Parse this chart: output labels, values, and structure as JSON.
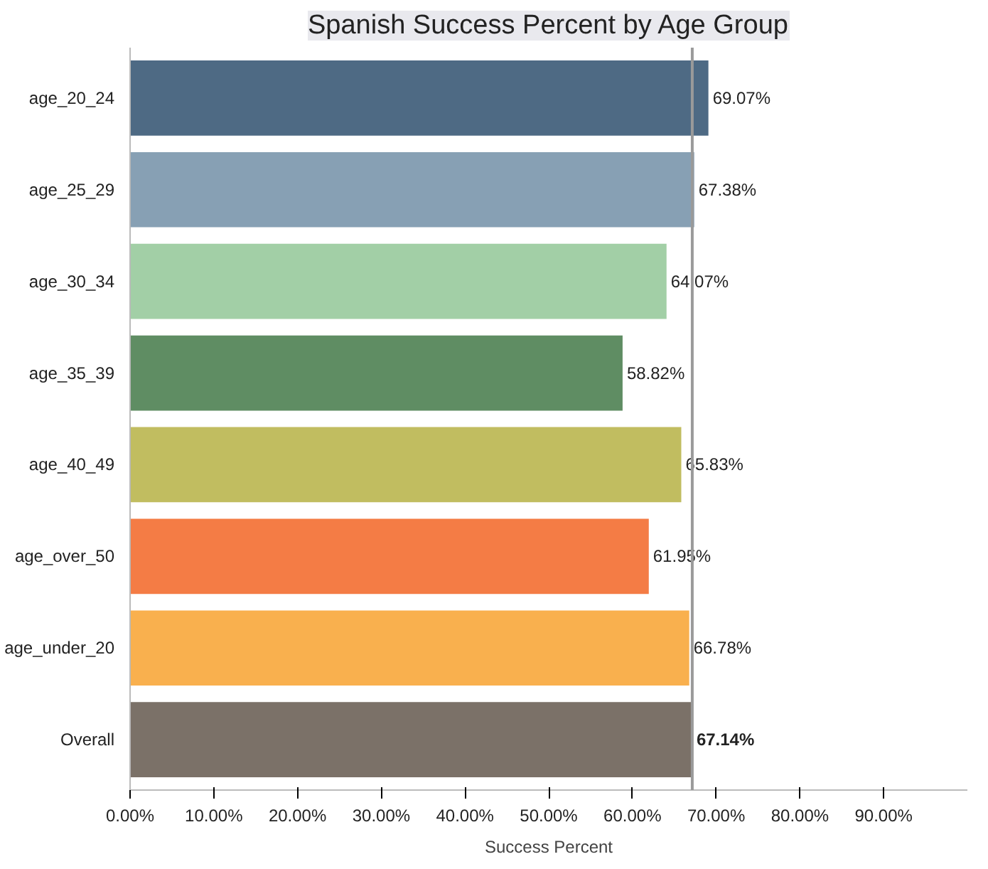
{
  "chart_data": {
    "type": "bar",
    "orientation": "horizontal",
    "title": "Spanish Success Percent by Age Group",
    "xlabel": "Success Percent",
    "categories": [
      "age_20_24",
      "age_25_29",
      "age_30_34",
      "age_35_39",
      "age_40_49",
      "age_over_50",
      "age_under_20",
      "Overall"
    ],
    "values": [
      69.07,
      67.38,
      64.07,
      58.82,
      65.83,
      61.95,
      66.78,
      67.14
    ],
    "colors": [
      "#4e6a84",
      "#87a0b4",
      "#a2cfa6",
      "#5f8d63",
      "#c1bd60",
      "#f47c45",
      "#f9b04e",
      "#7b7168"
    ],
    "value_labels": [
      "69.07%",
      "67.38%",
      "64.07%",
      "58.82%",
      "65.83%",
      "61.95%",
      "66.78%",
      "67.14%"
    ],
    "xlim": [
      0,
      100
    ],
    "xticks": [
      {
        "value": 0,
        "label": "0.00%"
      },
      {
        "value": 10,
        "label": "10.00%"
      },
      {
        "value": 20,
        "label": "20.00%"
      },
      {
        "value": 30,
        "label": "30.00%"
      },
      {
        "value": 40,
        "label": "40.00%"
      },
      {
        "value": 50,
        "label": "50.00%"
      },
      {
        "value": 60,
        "label": "60.00%"
      },
      {
        "value": 70,
        "label": "70.00%"
      },
      {
        "value": 80,
        "label": "80.00%"
      },
      {
        "value": 90,
        "label": "90.00%"
      }
    ],
    "ref_lines": [
      {
        "axis": "x",
        "value": 67.14,
        "color": "#9a9a9a"
      }
    ],
    "grid": false
  }
}
